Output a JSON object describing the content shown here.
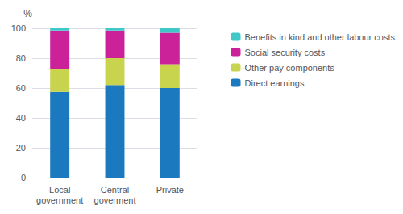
{
  "chart_data": {
    "type": "bar",
    "stacked": true,
    "grid": true,
    "legend": "right",
    "ylabel": "%",
    "categories": [
      "Local\ngovernment",
      "Central\ngoverment",
      "Private"
    ],
    "series": [
      {
        "name": "Direct earnings",
        "color": "#1b7abf",
        "values": [
          57.5,
          62.0,
          60.0
        ]
      },
      {
        "name": "Other pay components",
        "color": "#c8d44e",
        "values": [
          15.5,
          18.0,
          16.0
        ]
      },
      {
        "name": "Social security costs",
        "color": "#cc2299",
        "values": [
          25.5,
          18.5,
          21.0
        ]
      },
      {
        "name": "Benefits in kind and other labour costs",
        "color": "#40c8c8",
        "values": [
          1.5,
          1.5,
          3.0
        ]
      }
    ],
    "ylim": [
      0,
      100
    ],
    "yticks": [
      0,
      20,
      40,
      60,
      80,
      100
    ]
  }
}
